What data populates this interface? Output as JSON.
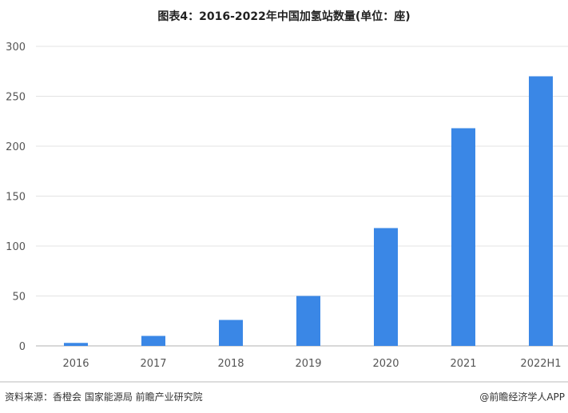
{
  "chart_data": {
    "type": "bar",
    "title": "图表4：2016-2022年中国加氢站数量(单位：座)",
    "categories": [
      "2016",
      "2017",
      "2018",
      "2019",
      "2020",
      "2021",
      "2022H1"
    ],
    "values": [
      3,
      10,
      26,
      50,
      118,
      218,
      270
    ],
    "ylim": [
      0,
      300
    ],
    "yticks": [
      0,
      50,
      100,
      150,
      200,
      250,
      300
    ],
    "grid": true,
    "bar_color": "#3a87e6",
    "xlabel": "",
    "ylabel": ""
  },
  "footer": {
    "source": "资料来源：香橙会 国家能源局 前瞻产业研究院",
    "credit": "@前瞻经济学人APP"
  }
}
